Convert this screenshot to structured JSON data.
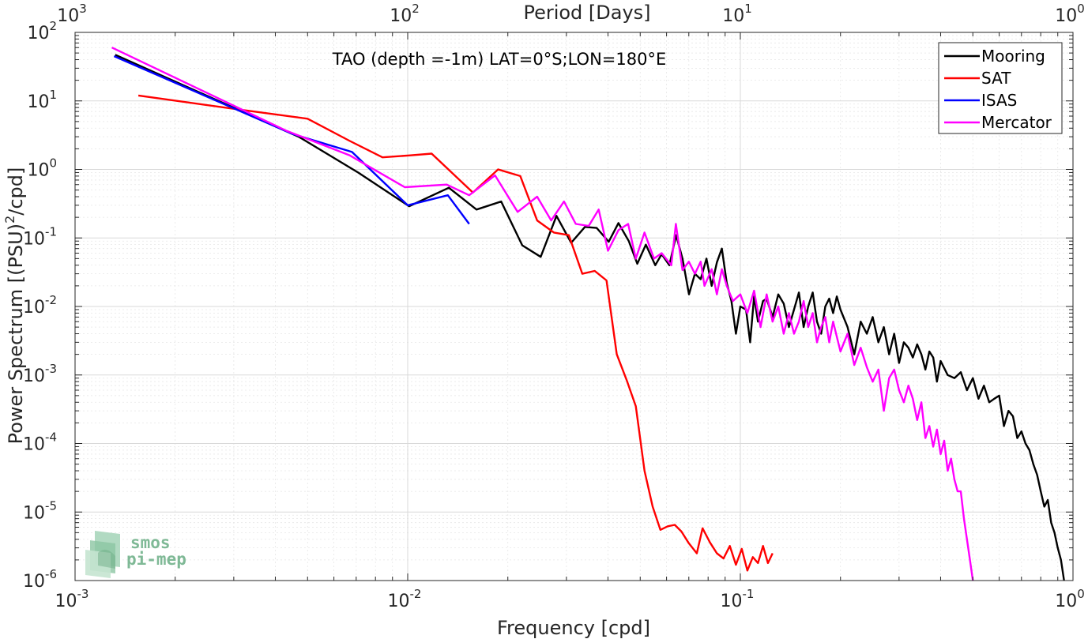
{
  "chart_data": {
    "type": "line",
    "title": "TAO (depth =-1m) LAT=0°S;LON=180°E",
    "xlabel": "Frequency [cpd]",
    "ylabel_main": "Power Spectrum [(PSU)",
    "ylabel_sup": "2",
    "ylabel_tail": "/cpd]",
    "x2label": "Period [Days]",
    "x_scale": "log",
    "y_scale": "log",
    "xlim": [
      0.001,
      1
    ],
    "ylim": [
      1e-06,
      100
    ],
    "grid": true,
    "legend_position": "top-right",
    "x_tick_labels": [
      {
        "base": "10",
        "exp": "-3"
      },
      {
        "base": "10",
        "exp": "-2"
      },
      {
        "base": "10",
        "exp": "-1"
      },
      {
        "base": "10",
        "exp": "0"
      }
    ],
    "x2_tick_labels": [
      {
        "base": "10",
        "exp": "3"
      },
      {
        "base": "10",
        "exp": "2"
      },
      {
        "base": "10",
        "exp": "1"
      },
      {
        "base": "10",
        "exp": "0"
      }
    ],
    "y_tick_labels": [
      {
        "base": "10",
        "exp": "-6"
      },
      {
        "base": "10",
        "exp": "-5"
      },
      {
        "base": "10",
        "exp": "-4"
      },
      {
        "base": "10",
        "exp": "-3"
      },
      {
        "base": "10",
        "exp": "-2"
      },
      {
        "base": "10",
        "exp": "-1"
      },
      {
        "base": "10",
        "exp": "0"
      },
      {
        "base": "10",
        "exp": "1"
      },
      {
        "base": "10",
        "exp": "2"
      }
    ],
    "series": [
      {
        "name": "Mooring",
        "color": "#000000",
        "points": [
          [
            0.00132,
            47
          ],
          [
            0.0047,
            3.0
          ],
          [
            0.0071,
            0.9
          ],
          [
            0.0101,
            0.29
          ],
          [
            0.0133,
            0.54
          ],
          [
            0.0161,
            0.26
          ],
          [
            0.0191,
            0.34
          ],
          [
            0.0221,
            0.078
          ],
          [
            0.0251,
            0.053
          ],
          [
            0.028,
            0.21
          ],
          [
            0.031,
            0.085
          ],
          [
            0.0341,
            0.145
          ],
          [
            0.037,
            0.14
          ],
          [
            0.0402,
            0.088
          ],
          [
            0.043,
            0.165
          ],
          [
            0.0462,
            0.09
          ],
          [
            0.049,
            0.042
          ],
          [
            0.052,
            0.08
          ],
          [
            0.0555,
            0.04
          ],
          [
            0.058,
            0.058
          ],
          [
            0.0612,
            0.04
          ],
          [
            0.0641,
            0.11
          ],
          [
            0.067,
            0.05
          ],
          [
            0.0701,
            0.015
          ],
          [
            0.073,
            0.03
          ],
          [
            0.076,
            0.025
          ],
          [
            0.0791,
            0.05
          ],
          [
            0.082,
            0.02
          ],
          [
            0.085,
            0.044
          ],
          [
            0.088,
            0.07
          ],
          [
            0.091,
            0.022
          ],
          [
            0.094,
            0.012
          ],
          [
            0.097,
            0.004
          ],
          [
            0.1,
            0.01
          ],
          [
            0.104,
            0.009
          ],
          [
            0.107,
            0.003
          ],
          [
            0.11,
            0.014
          ],
          [
            0.113,
            0.006
          ],
          [
            0.117,
            0.012
          ],
          [
            0.12,
            0.013
          ],
          [
            0.125,
            0.007
          ],
          [
            0.13,
            0.015
          ],
          [
            0.135,
            0.011
          ],
          [
            0.14,
            0.005
          ],
          [
            0.145,
            0.009
          ],
          [
            0.15,
            0.016
          ],
          [
            0.155,
            0.005
          ],
          [
            0.16,
            0.01
          ],
          [
            0.165,
            0.016
          ],
          [
            0.17,
            0.006
          ],
          [
            0.175,
            0.004
          ],
          [
            0.18,
            0.01
          ],
          [
            0.185,
            0.013
          ],
          [
            0.19,
            0.008
          ],
          [
            0.195,
            0.014
          ],
          [
            0.2,
            0.009
          ],
          [
            0.21,
            0.005
          ],
          [
            0.22,
            0.002
          ],
          [
            0.23,
            0.006
          ],
          [
            0.24,
            0.004
          ],
          [
            0.25,
            0.007
          ],
          [
            0.26,
            0.003
          ],
          [
            0.27,
            0.005
          ],
          [
            0.28,
            0.002
          ],
          [
            0.29,
            0.004
          ],
          [
            0.3,
            0.0015
          ],
          [
            0.31,
            0.003
          ],
          [
            0.32,
            0.0025
          ],
          [
            0.33,
            0.0018
          ],
          [
            0.34,
            0.0028
          ],
          [
            0.35,
            0.002
          ],
          [
            0.36,
            0.0012
          ],
          [
            0.37,
            0.0022
          ],
          [
            0.38,
            0.0018
          ],
          [
            0.39,
            0.0008
          ],
          [
            0.4,
            0.0016
          ],
          [
            0.42,
            0.001
          ],
          [
            0.44,
            0.0009
          ],
          [
            0.46,
            0.0011
          ],
          [
            0.48,
            0.0006
          ],
          [
            0.5,
            0.0009
          ],
          [
            0.52,
            0.00045
          ],
          [
            0.54,
            0.0007
          ],
          [
            0.56,
            0.0004
          ],
          [
            0.58,
            0.00045
          ],
          [
            0.6,
            0.0005
          ],
          [
            0.62,
            0.00018
          ],
          [
            0.64,
            0.0003
          ],
          [
            0.66,
            0.00025
          ],
          [
            0.68,
            0.00012
          ],
          [
            0.7,
            0.00015
          ],
          [
            0.72,
            0.0001
          ],
          [
            0.74,
            8e-05
          ],
          [
            0.76,
            5e-05
          ],
          [
            0.78,
            3.5e-05
          ],
          [
            0.8,
            2e-05
          ],
          [
            0.82,
            1.2e-05
          ],
          [
            0.84,
            1.5e-05
          ],
          [
            0.86,
            7e-06
          ],
          [
            0.88,
            5e-06
          ],
          [
            0.9,
            3e-06
          ],
          [
            0.92,
            2e-06
          ],
          [
            0.94,
            1e-06
          ]
        ]
      },
      {
        "name": "SAT",
        "color": "#ff0000",
        "points": [
          [
            0.00155,
            12
          ],
          [
            0.0031,
            7.5
          ],
          [
            0.005,
            5.5
          ],
          [
            0.0067,
            2.6
          ],
          [
            0.0084,
            1.5
          ],
          [
            0.0101,
            1.6
          ],
          [
            0.0118,
            1.7
          ],
          [
            0.0157,
            0.46
          ],
          [
            0.0187,
            1.0
          ],
          [
            0.0218,
            0.8
          ],
          [
            0.0245,
            0.18
          ],
          [
            0.0275,
            0.12
          ],
          [
            0.0305,
            0.11
          ],
          [
            0.0335,
            0.03
          ],
          [
            0.0365,
            0.033
          ],
          [
            0.0396,
            0.024
          ],
          [
            0.0425,
            0.002
          ],
          [
            0.0455,
            0.00085
          ],
          [
            0.0485,
            0.00035
          ],
          [
            0.0515,
            4e-05
          ],
          [
            0.0545,
            1.2e-05
          ],
          [
            0.0575,
            5.5e-06
          ],
          [
            0.0605,
            6.2e-06
          ],
          [
            0.0635,
            6.5e-06
          ],
          [
            0.0665,
            5.2e-06
          ],
          [
            0.07,
            3.5e-06
          ],
          [
            0.074,
            2.5e-06
          ],
          [
            0.077,
            5.8e-06
          ],
          [
            0.081,
            3.6e-06
          ],
          [
            0.085,
            2.5e-06
          ],
          [
            0.089,
            2.1e-06
          ],
          [
            0.093,
            3.2e-06
          ],
          [
            0.097,
            1.7e-06
          ],
          [
            0.101,
            2.9e-06
          ],
          [
            0.105,
            1.4e-06
          ],
          [
            0.109,
            2.2e-06
          ],
          [
            0.113,
            1.8e-06
          ],
          [
            0.117,
            3.2e-06
          ],
          [
            0.121,
            1.8e-06
          ],
          [
            0.125,
            2.5e-06
          ]
        ]
      },
      {
        "name": "ISAS",
        "color": "#0000ff",
        "points": [
          [
            0.00131,
            45
          ],
          [
            0.0045,
            3.3
          ],
          [
            0.0068,
            1.8
          ],
          [
            0.01,
            0.3
          ],
          [
            0.0132,
            0.42
          ],
          [
            0.0153,
            0.16
          ]
        ]
      },
      {
        "name": "Mercator",
        "color": "#ff00ff",
        "points": [
          [
            0.00129,
            60
          ],
          [
            0.0043,
            3.7
          ],
          [
            0.0067,
            1.6
          ],
          [
            0.0098,
            0.55
          ],
          [
            0.0131,
            0.6
          ],
          [
            0.0153,
            0.42
          ],
          [
            0.0183,
            0.82
          ],
          [
            0.0214,
            0.24
          ],
          [
            0.0245,
            0.4
          ],
          [
            0.027,
            0.18
          ],
          [
            0.0295,
            0.34
          ],
          [
            0.032,
            0.16
          ],
          [
            0.035,
            0.15
          ],
          [
            0.0375,
            0.26
          ],
          [
            0.04,
            0.065
          ],
          [
            0.043,
            0.13
          ],
          [
            0.046,
            0.16
          ],
          [
            0.0485,
            0.05
          ],
          [
            0.0515,
            0.12
          ],
          [
            0.055,
            0.05
          ],
          [
            0.058,
            0.06
          ],
          [
            0.062,
            0.04
          ],
          [
            0.064,
            0.16
          ],
          [
            0.067,
            0.034
          ],
          [
            0.07,
            0.045
          ],
          [
            0.073,
            0.03
          ],
          [
            0.076,
            0.045
          ],
          [
            0.078,
            0.02
          ],
          [
            0.082,
            0.035
          ],
          [
            0.085,
            0.015
          ],
          [
            0.088,
            0.035
          ],
          [
            0.091,
            0.02
          ],
          [
            0.095,
            0.012
          ],
          [
            0.1,
            0.015
          ],
          [
            0.105,
            0.008
          ],
          [
            0.11,
            0.017
          ],
          [
            0.115,
            0.005
          ],
          [
            0.12,
            0.015
          ],
          [
            0.125,
            0.006
          ],
          [
            0.13,
            0.01
          ],
          [
            0.135,
            0.004
          ],
          [
            0.14,
            0.008
          ],
          [
            0.145,
            0.004
          ],
          [
            0.15,
            0.006
          ],
          [
            0.155,
            0.012
          ],
          [
            0.16,
            0.005
          ],
          [
            0.165,
            0.008
          ],
          [
            0.17,
            0.003
          ],
          [
            0.175,
            0.005
          ],
          [
            0.18,
            0.007
          ],
          [
            0.185,
            0.003
          ],
          [
            0.19,
            0.006
          ],
          [
            0.2,
            0.0022
          ],
          [
            0.21,
            0.004
          ],
          [
            0.22,
            0.0014
          ],
          [
            0.23,
            0.0025
          ],
          [
            0.24,
            0.0013
          ],
          [
            0.25,
            0.0008
          ],
          [
            0.26,
            0.0012
          ],
          [
            0.27,
            0.0003
          ],
          [
            0.28,
            0.0009
          ],
          [
            0.29,
            0.0012
          ],
          [
            0.3,
            0.0006
          ],
          [
            0.31,
            0.0004
          ],
          [
            0.32,
            0.0007
          ],
          [
            0.33,
            0.00045
          ],
          [
            0.34,
            0.00022
          ],
          [
            0.35,
            0.0004
          ],
          [
            0.36,
            0.00012
          ],
          [
            0.37,
            0.00018
          ],
          [
            0.38,
            9e-05
          ],
          [
            0.39,
            0.00016
          ],
          [
            0.4,
            7e-05
          ],
          [
            0.41,
            0.00011
          ],
          [
            0.42,
            4e-05
          ],
          [
            0.43,
            6e-05
          ],
          [
            0.44,
            3e-05
          ],
          [
            0.45,
            2e-05
          ],
          [
            0.46,
            2e-05
          ],
          [
            0.47,
            8e-06
          ],
          [
            0.48,
            4e-06
          ],
          [
            0.49,
            2e-06
          ],
          [
            0.5,
            1e-06
          ]
        ]
      }
    ]
  },
  "watermark": {
    "line1": "smos",
    "line2": "pi-mep",
    "color": "#7fb996"
  }
}
